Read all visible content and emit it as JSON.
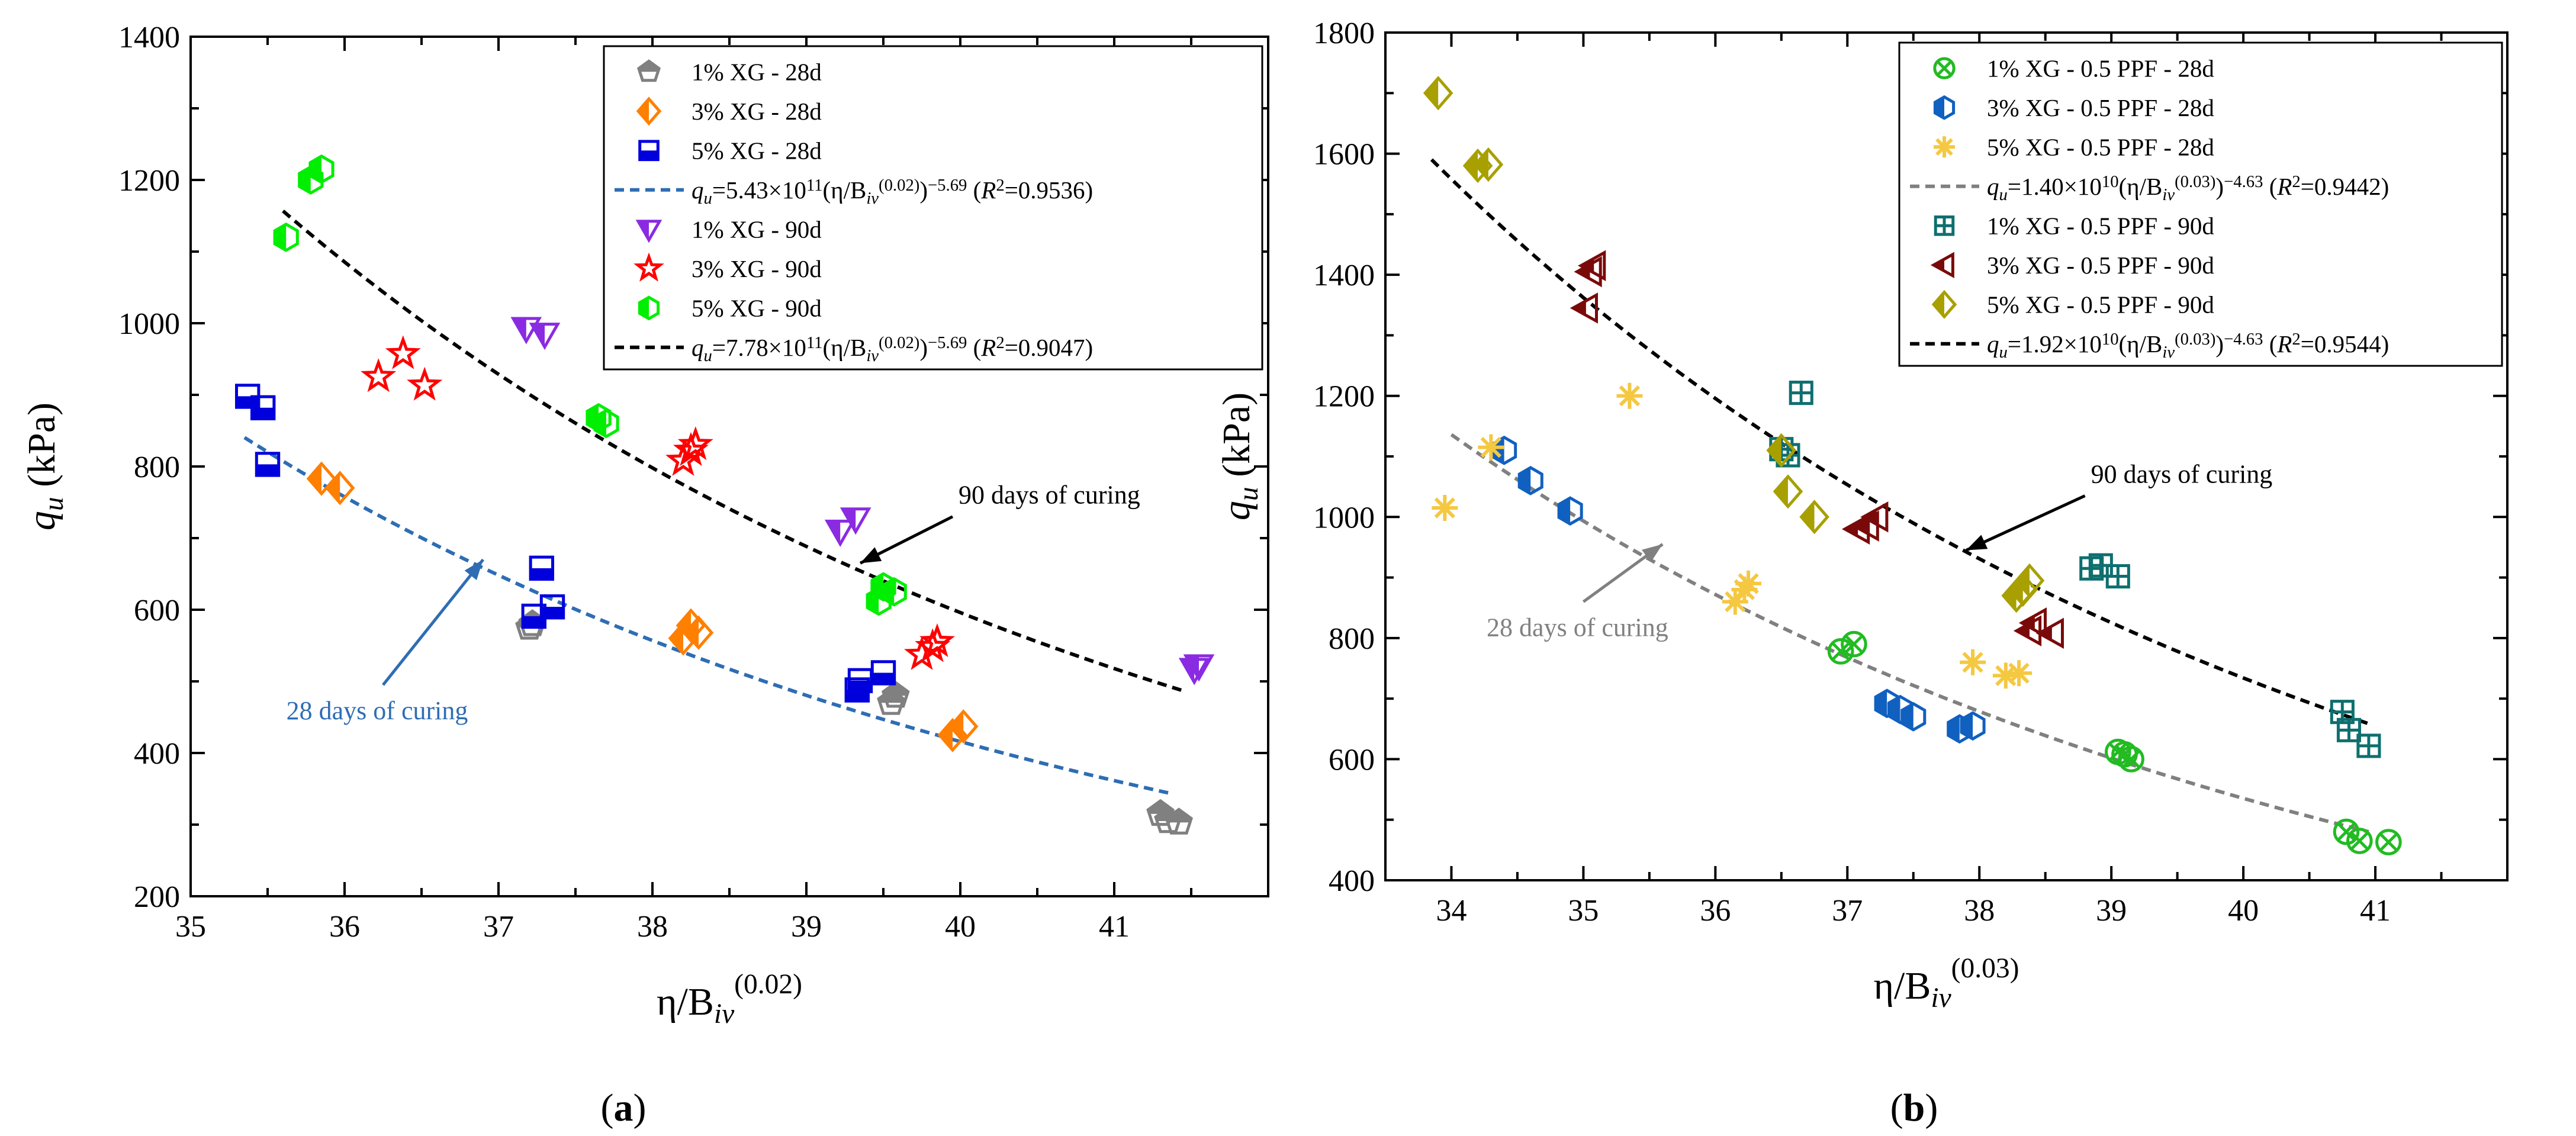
{
  "chart_data": [
    {
      "type": "scatter",
      "panel_label": "(a)",
      "xlabel": "η/B_iv^(0.02)",
      "xlabel_base": "η/B",
      "xlabel_sub": "iv",
      "xlabel_sup": "(0.02)",
      "ylabel": "q_u (kPa)",
      "ylabel_var": "q",
      "ylabel_sub": "u",
      "ylabel_unit": " (kPa)",
      "xlim": [
        35,
        42
      ],
      "ylim": [
        200,
        1400
      ],
      "xticks": [
        35,
        36,
        37,
        38,
        39,
        40,
        41
      ],
      "yticks": [
        200,
        400,
        600,
        800,
        1000,
        1200,
        1400
      ],
      "grid": false,
      "legend_position": "top-right",
      "legend": [
        {
          "type": "marker",
          "text": "1% XG - 28d",
          "series": 0
        },
        {
          "type": "marker",
          "text": "3% XG - 28d",
          "series": 1
        },
        {
          "type": "marker",
          "text": "5% XG - 28d",
          "series": 2
        },
        {
          "type": "line",
          "line": 0,
          "text": "q_u=5.43×10^11(η/B_iv^(0.02))^−5.69 (R^2=0.9536)"
        },
        {
          "type": "marker",
          "text": "1% XG - 90d",
          "series": 3
        },
        {
          "type": "marker",
          "text": "3% XG - 90d",
          "series": 4
        },
        {
          "type": "marker",
          "text": "5% XG - 90d",
          "series": 5
        },
        {
          "type": "line",
          "line": 1,
          "text": "q_u=7.78×10^11(η/B_iv^(0.02))^−5.69 (R^2=0.9047)"
        }
      ],
      "series": [
        {
          "name": "1% XG - 28d",
          "marker": "pentagon-half",
          "color": "#808080",
          "points": [
            [
              37.2,
              575
            ],
            [
              37.22,
              580
            ],
            [
              39.55,
              470
            ],
            [
              39.58,
              480
            ],
            [
              41.3,
              315
            ],
            [
              41.35,
              305
            ],
            [
              41.42,
              303
            ]
          ]
        },
        {
          "name": "3% XG - 28d",
          "marker": "diamond-half",
          "color": "#ff7f00",
          "points": [
            [
              35.85,
              783
            ],
            [
              35.97,
              770
            ],
            [
              38.2,
              560
            ],
            [
              38.25,
              578
            ],
            [
              38.3,
              568
            ],
            [
              39.95,
              425
            ],
            [
              40.02,
              437
            ]
          ]
        },
        {
          "name": "5% XG - 28d",
          "marker": "square-half",
          "color": "#0000dd",
          "points": [
            [
              35.37,
              898
            ],
            [
              35.47,
              882
            ],
            [
              35.5,
              803
            ],
            [
              37.23,
              591
            ],
            [
              37.28,
              658
            ],
            [
              37.35,
              604
            ],
            [
              39.33,
              488
            ],
            [
              39.35,
              501
            ],
            [
              39.5,
              512
            ]
          ]
        },
        {
          "name": "1% XG - 90d",
          "marker": "triangle-down-half",
          "color": "#8a2be2",
          "points": [
            [
              37.18,
              993
            ],
            [
              37.3,
              985
            ],
            [
              39.22,
              710
            ],
            [
              39.32,
              727
            ],
            [
              41.52,
              517
            ],
            [
              41.55,
              522
            ]
          ]
        },
        {
          "name": "3% XG - 90d",
          "marker": "star",
          "color": "#ff0000",
          "points": [
            [
              36.22,
              925
            ],
            [
              36.38,
              957
            ],
            [
              36.52,
              913
            ],
            [
              38.2,
              808
            ],
            [
              38.25,
              822
            ],
            [
              38.28,
              830
            ],
            [
              39.75,
              537
            ],
            [
              39.82,
              548
            ],
            [
              39.85,
              555
            ]
          ]
        },
        {
          "name": "5% XG - 90d",
          "marker": "hexagon-half",
          "color": "#00ee00",
          "points": [
            [
              35.62,
              1120
            ],
            [
              35.78,
              1200
            ],
            [
              35.85,
              1215
            ],
            [
              37.65,
              868
            ],
            [
              37.7,
              860
            ],
            [
              39.47,
              612
            ],
            [
              39.5,
              632
            ],
            [
              39.57,
              625
            ]
          ]
        }
      ],
      "fit_lines": [
        {
          "name": "q_u=5.43×10^11(η/B_iv^(0.02))^−5.69",
          "coef": 543000000000.0,
          "exp": -5.69,
          "x_range": [
            35.35,
            41.35
          ],
          "color": "#2e6db4"
        },
        {
          "name": "q_u=7.78×10^11(η/B_iv^(0.02))^−5.69",
          "coef": 778000000000.0,
          "exp": -5.69,
          "x_range": [
            35.6,
            41.45
          ],
          "color": "#000000"
        }
      ],
      "annotations": [
        {
          "text": "90 days of curing",
          "color": "#000000",
          "arrow_from": [
            39.95,
            730
          ],
          "arrow_to": [
            39.35,
            665
          ]
        },
        {
          "text": "28 days of curing",
          "color": "#2e6db4",
          "arrow_from": [
            36.25,
            495
          ],
          "arrow_to": [
            36.9,
            670
          ]
        }
      ]
    },
    {
      "type": "scatter",
      "panel_label": "(b)",
      "xlabel": "η/B_iv^(0.03)",
      "xlabel_base": "η/B",
      "xlabel_sub": "iv",
      "xlabel_sup": "(0.03)",
      "ylabel": "q_u (kPa)",
      "ylabel_var": "q",
      "ylabel_sub": "u",
      "ylabel_unit": " (kPa)",
      "xlim": [
        33.5,
        42
      ],
      "ylim": [
        400,
        1800
      ],
      "xticks": [
        34,
        35,
        36,
        37,
        38,
        39,
        40,
        41
      ],
      "yticks": [
        400,
        600,
        800,
        1000,
        1200,
        1400,
        1600,
        1800
      ],
      "grid": false,
      "legend_position": "top-right",
      "legend": [
        {
          "type": "marker",
          "text": "1% XG - 0.5 PPF - 28d",
          "series": 0
        },
        {
          "type": "marker",
          "text": "3% XG - 0.5 PPF - 28d",
          "series": 1
        },
        {
          "type": "marker",
          "text": "5% XG - 0.5 PPF - 28d",
          "series": 2
        },
        {
          "type": "line",
          "line": 0,
          "text": "q_u=1.40×10^10(η/B_iv^(0.03))^−4.63 (R^2=0.9442)"
        },
        {
          "type": "marker",
          "text": "1% XG - 0.5 PPF - 90d",
          "series": 3
        },
        {
          "type": "marker",
          "text": "3% XG - 0.5 PPF - 90d",
          "series": 4
        },
        {
          "type": "marker",
          "text": "5% XG - 0.5 PPF - 90d",
          "series": 5
        },
        {
          "type": "line",
          "line": 1,
          "text": "q_u=1.92×10^10(η/B_iv^(0.03))^−4.63 (R^2=0.9544)"
        }
      ],
      "series": [
        {
          "name": "1% XG - 0.5 PPF - 28d",
          "marker": "circle-x",
          "color": "#22bb22",
          "points": [
            [
              36.95,
              778
            ],
            [
              37.05,
              790
            ],
            [
              39.05,
              612
            ],
            [
              39.1,
              608
            ],
            [
              39.15,
              600
            ],
            [
              40.78,
              480
            ],
            [
              40.88,
              465
            ],
            [
              41.1,
              463
            ]
          ]
        },
        {
          "name": "3% XG - 0.5 PPF - 28d",
          "marker": "hexagon-half",
          "color": "#1060c0",
          "points": [
            [
              34.4,
              1110
            ],
            [
              34.6,
              1060
            ],
            [
              34.9,
              1010
            ],
            [
              37.3,
              692
            ],
            [
              37.4,
              682
            ],
            [
              37.5,
              670
            ],
            [
              37.85,
              650
            ],
            [
              37.95,
              655
            ]
          ]
        },
        {
          "name": "5% XG - 0.5 PPF - 28d",
          "marker": "asterisk",
          "color": "#f5c842",
          "points": [
            [
              33.95,
              1015
            ],
            [
              34.3,
              1115
            ],
            [
              35.35,
              1200
            ],
            [
              36.15,
              860
            ],
            [
              36.22,
              880
            ],
            [
              36.25,
              890
            ],
            [
              37.95,
              760
            ],
            [
              38.2,
              738
            ],
            [
              38.3,
              742
            ]
          ]
        },
        {
          "name": "1% XG - 0.5 PPF - 90d",
          "marker": "square-plus",
          "color": "#0f6f6f",
          "points": [
            [
              36.5,
              1112
            ],
            [
              36.55,
              1102
            ],
            [
              36.65,
              1205
            ],
            [
              38.85,
              915
            ],
            [
              38.92,
              920
            ],
            [
              39.05,
              902
            ],
            [
              40.75,
              678
            ],
            [
              40.8,
              648
            ],
            [
              40.95,
              622
            ]
          ]
        },
        {
          "name": "3% XG - 0.5 PPF - 90d",
          "marker": "triangle-left-half",
          "color": "#7a0a0a",
          "points": [
            [
              35.02,
              1345
            ],
            [
              35.05,
              1405
            ],
            [
              35.08,
              1415
            ],
            [
              37.08,
              980
            ],
            [
              37.15,
              985
            ],
            [
              37.22,
              1000
            ],
            [
              38.38,
              812
            ],
            [
              38.42,
              825
            ],
            [
              38.55,
              808
            ]
          ]
        },
        {
          "name": "5% XG - 0.5 PPF - 90d",
          "marker": "diamond-half",
          "color": "#a8a000",
          "points": [
            [
              33.9,
              1700
            ],
            [
              34.2,
              1580
            ],
            [
              34.28,
              1582
            ],
            [
              36.5,
              1110
            ],
            [
              36.55,
              1042
            ],
            [
              36.75,
              1000
            ],
            [
              38.28,
              870
            ],
            [
              38.33,
              880
            ],
            [
              38.38,
              895
            ]
          ]
        }
      ],
      "fit_lines": [
        {
          "name": "q_u=1.40×10^10(η/B_iv^(0.03))^−4.63",
          "coef": 14000000000.0,
          "exp": -4.63,
          "x_range": [
            34.0,
            40.95
          ],
          "color": "#808080"
        },
        {
          "name": "q_u=1.92×10^10(η/B_iv^(0.03))^−4.63",
          "coef": 19200000000.0,
          "exp": -4.63,
          "x_range": [
            33.85,
            40.95
          ],
          "color": "#000000"
        }
      ],
      "annotations": [
        {
          "text": "90 days of curing",
          "color": "#000000",
          "arrow_from": [
            38.8,
            1035
          ],
          "arrow_to": [
            37.9,
            945
          ]
        },
        {
          "text": "28 days of curing",
          "color": "#808080",
          "arrow_from": [
            35.0,
            860
          ],
          "arrow_to": [
            35.6,
            955
          ]
        }
      ]
    }
  ]
}
